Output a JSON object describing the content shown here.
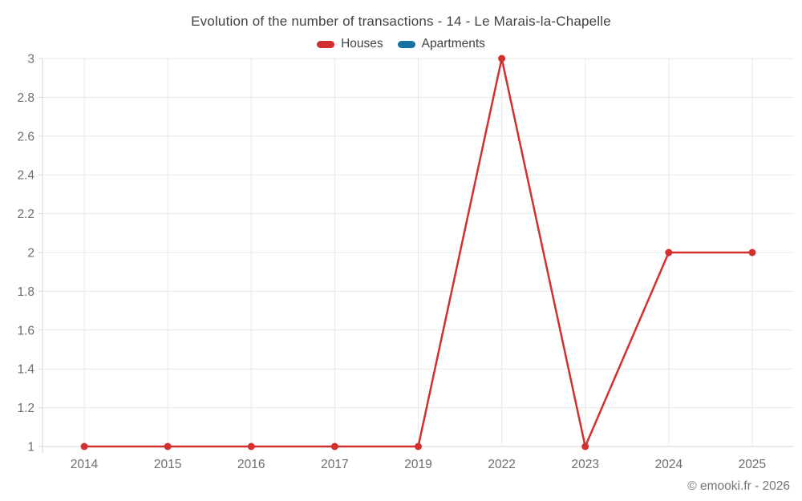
{
  "chart_data": {
    "type": "line",
    "title": "Evolution of the number of transactions - 14 - Le Marais-la-Chapelle",
    "categories": [
      "2014",
      "2015",
      "2016",
      "2017",
      "2019",
      "2022",
      "2023",
      "2024",
      "2025"
    ],
    "series": [
      {
        "name": "Houses",
        "color": "#d32f2f",
        "values": [
          1,
          1,
          1,
          1,
          1,
          3,
          1,
          2,
          2
        ]
      },
      {
        "name": "Apartments",
        "color": "#1673a3",
        "values": []
      }
    ],
    "ylim": [
      1,
      3
    ],
    "yticks": [
      1,
      1.2,
      1.4,
      1.6,
      1.8,
      2,
      2.2,
      2.4,
      2.6,
      2.8,
      3
    ],
    "ytick_labels": [
      "1",
      "1.2",
      "1.4",
      "1.6",
      "1.8",
      "2",
      "2.2",
      "2.4",
      "2.6",
      "2.8",
      "3"
    ],
    "grid": true,
    "legend_position": "top",
    "xlabel": "",
    "ylabel": ""
  },
  "footer": {
    "copyright": "© emooki.fr - 2026"
  },
  "colors": {
    "grid": "#e9e9e9",
    "axis": "#d6d6d6",
    "tick_text": "#6e6e6e",
    "title_text": "#424242"
  }
}
